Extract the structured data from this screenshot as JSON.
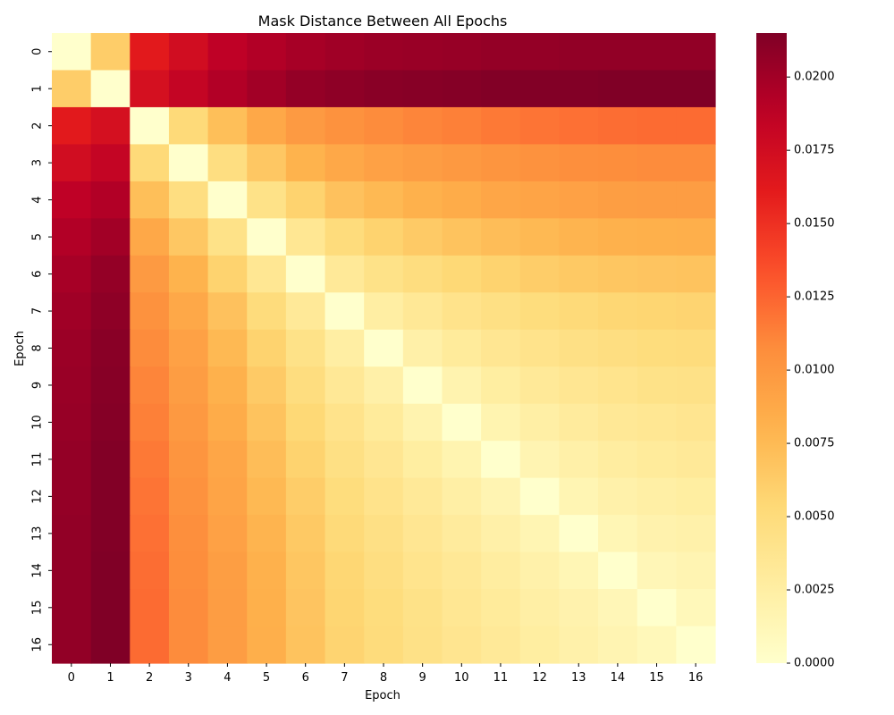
{
  "chart_data": {
    "type": "heatmap",
    "title": "Mask Distance Between All Epochs",
    "xlabel": "Epoch",
    "ylabel": "Epoch",
    "x_categories": [
      "0",
      "1",
      "2",
      "3",
      "4",
      "5",
      "6",
      "7",
      "8",
      "9",
      "10",
      "11",
      "12",
      "13",
      "14",
      "15",
      "16"
    ],
    "y_categories": [
      "0",
      "1",
      "2",
      "3",
      "4",
      "5",
      "6",
      "7",
      "8",
      "9",
      "10",
      "11",
      "12",
      "13",
      "14",
      "15",
      "16"
    ],
    "colormap": "YlOrRd",
    "colorbar": {
      "min": 0.0,
      "max": 0.0215,
      "ticks": [
        0.0,
        0.0025,
        0.005,
        0.0075,
        0.01,
        0.0125,
        0.015,
        0.0175,
        0.02
      ],
      "tick_labels": [
        "0.0000",
        "0.0025",
        "0.0050",
        "0.0075",
        "0.0100",
        "0.0125",
        "0.0150",
        "0.0175",
        "0.0200"
      ]
    },
    "values": [
      [
        0.0,
        0.0062,
        0.0162,
        0.0175,
        0.0187,
        0.0193,
        0.0198,
        0.0201,
        0.0203,
        0.0204,
        0.0205,
        0.0206,
        0.0206,
        0.0207,
        0.0207,
        0.0207,
        0.0207
      ],
      [
        0.0062,
        0.0,
        0.0172,
        0.0183,
        0.0193,
        0.02,
        0.0206,
        0.0209,
        0.0211,
        0.0212,
        0.0213,
        0.0214,
        0.0214,
        0.0214,
        0.0215,
        0.0215,
        0.0215
      ],
      [
        0.0162,
        0.0172,
        0.0,
        0.0052,
        0.0072,
        0.0088,
        0.0098,
        0.0104,
        0.0108,
        0.0111,
        0.0113,
        0.0116,
        0.0118,
        0.012,
        0.0121,
        0.0122,
        0.0122
      ],
      [
        0.0175,
        0.0183,
        0.0052,
        0.0,
        0.0047,
        0.0066,
        0.008,
        0.0088,
        0.0093,
        0.0096,
        0.0099,
        0.0102,
        0.0104,
        0.0106,
        0.0107,
        0.0108,
        0.0108
      ],
      [
        0.0187,
        0.0193,
        0.0072,
        0.0047,
        0.0,
        0.0042,
        0.0058,
        0.007,
        0.0076,
        0.0081,
        0.0085,
        0.0089,
        0.0091,
        0.0093,
        0.0095,
        0.0096,
        0.0096
      ],
      [
        0.0193,
        0.02,
        0.0088,
        0.0066,
        0.0042,
        0.0,
        0.0035,
        0.005,
        0.0058,
        0.0064,
        0.0069,
        0.0073,
        0.0076,
        0.0079,
        0.0081,
        0.0082,
        0.0083
      ],
      [
        0.0198,
        0.0206,
        0.0098,
        0.008,
        0.0058,
        0.0035,
        0.0,
        0.0032,
        0.0042,
        0.0048,
        0.0054,
        0.0058,
        0.0062,
        0.0065,
        0.0067,
        0.0068,
        0.0069
      ],
      [
        0.0201,
        0.0209,
        0.0104,
        0.0088,
        0.007,
        0.005,
        0.0032,
        0.0,
        0.0025,
        0.0033,
        0.004,
        0.0045,
        0.0049,
        0.0052,
        0.0055,
        0.0056,
        0.0057
      ],
      [
        0.0203,
        0.0211,
        0.0108,
        0.0093,
        0.0076,
        0.0058,
        0.0042,
        0.0025,
        0.0,
        0.0022,
        0.003,
        0.0036,
        0.004,
        0.0044,
        0.0047,
        0.0049,
        0.005
      ],
      [
        0.0204,
        0.0212,
        0.0111,
        0.0096,
        0.0081,
        0.0064,
        0.0048,
        0.0033,
        0.0022,
        0.0,
        0.0018,
        0.0026,
        0.0032,
        0.0036,
        0.0039,
        0.0042,
        0.0043
      ],
      [
        0.0205,
        0.0213,
        0.0113,
        0.0099,
        0.0085,
        0.0069,
        0.0054,
        0.004,
        0.003,
        0.0018,
        0.0,
        0.0017,
        0.0024,
        0.0029,
        0.0033,
        0.0035,
        0.0037
      ],
      [
        0.0206,
        0.0214,
        0.0116,
        0.0102,
        0.0089,
        0.0073,
        0.0058,
        0.0045,
        0.0036,
        0.0026,
        0.0017,
        0.0,
        0.0016,
        0.0022,
        0.0027,
        0.003,
        0.0032
      ],
      [
        0.0206,
        0.0214,
        0.0118,
        0.0104,
        0.0091,
        0.0076,
        0.0062,
        0.0049,
        0.004,
        0.0032,
        0.0024,
        0.0016,
        0.0,
        0.0015,
        0.0021,
        0.0024,
        0.0026
      ],
      [
        0.0207,
        0.0214,
        0.012,
        0.0106,
        0.0093,
        0.0079,
        0.0065,
        0.0052,
        0.0044,
        0.0036,
        0.0029,
        0.0022,
        0.0015,
        0.0,
        0.0014,
        0.0019,
        0.0021
      ],
      [
        0.0207,
        0.0215,
        0.0121,
        0.0107,
        0.0095,
        0.0081,
        0.0067,
        0.0055,
        0.0047,
        0.0039,
        0.0033,
        0.0027,
        0.0021,
        0.0014,
        0.0,
        0.0013,
        0.0016
      ],
      [
        0.0207,
        0.0215,
        0.0122,
        0.0108,
        0.0096,
        0.0082,
        0.0068,
        0.0056,
        0.0049,
        0.0042,
        0.0035,
        0.003,
        0.0024,
        0.0019,
        0.0013,
        0.0,
        0.0011
      ],
      [
        0.0207,
        0.0215,
        0.0122,
        0.0108,
        0.0096,
        0.0083,
        0.0069,
        0.0057,
        0.005,
        0.0043,
        0.0037,
        0.0032,
        0.0026,
        0.0021,
        0.0016,
        0.0011,
        0.0
      ]
    ],
    "grid": false,
    "legend": "colorbar-right"
  }
}
